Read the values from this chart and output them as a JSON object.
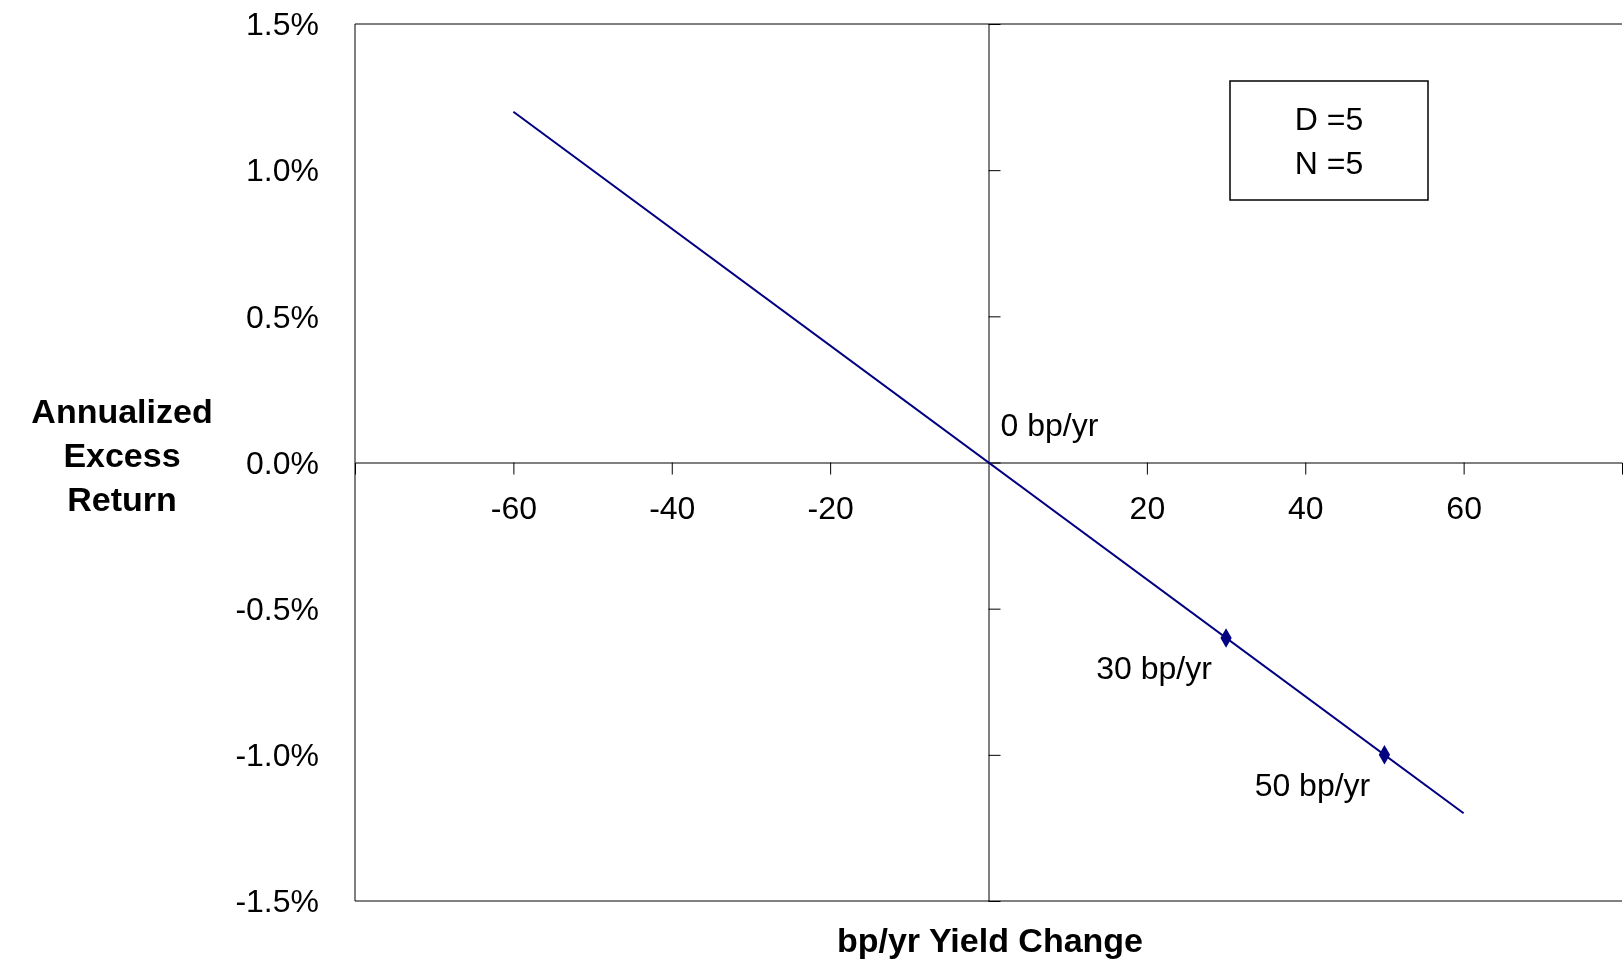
{
  "chart_data": {
    "type": "line",
    "xlabel": "bp/yr Yield Change",
    "ylabel": "Annualized Excess Return",
    "xlim": [
      -80,
      80
    ],
    "xticks": [
      -60,
      -40,
      -20,
      20,
      40,
      60
    ],
    "ylim": [
      -1.5,
      1.5
    ],
    "yticks": [
      {
        "value": -1.5,
        "label": "-1.5%"
      },
      {
        "value": -1,
        "label": "-1.0%"
      },
      {
        "value": -0.5,
        "label": "-0.5%"
      },
      {
        "value": 0,
        "label": "0.0%"
      },
      {
        "value": 0.5,
        "label": "0.5%"
      },
      {
        "value": 1,
        "label": "1.0%"
      },
      {
        "value": 1.5,
        "label": "1.5%"
      }
    ],
    "grid": false,
    "series": [
      {
        "color": "#000080",
        "x": [
          -60,
          60
        ],
        "values": [
          1.2,
          -1.2
        ],
        "marker": "none"
      },
      {
        "type": "scatter",
        "color": "#000080",
        "x": [
          30,
          50
        ],
        "values": [
          -0.6,
          -1.0
        ],
        "marker": "diamond"
      }
    ],
    "annotations": [
      "D =5",
      "N =5",
      {
        "text": "0 bp/yr",
        "x": 0,
        "y": 0
      },
      {
        "text": "30 bp/yr",
        "x": 30,
        "y": -0.6
      },
      {
        "text": "50 bp/yr",
        "x": 50,
        "y": -1.0
      }
    ]
  }
}
